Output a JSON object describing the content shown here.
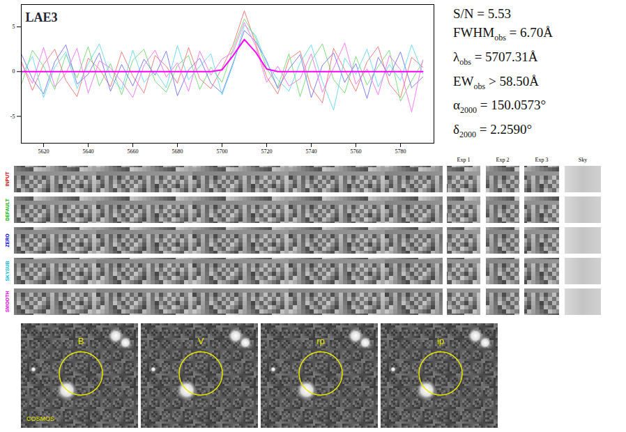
{
  "chart_data": {
    "type": "line",
    "title": "LAE3",
    "x": [
      5610,
      5615,
      5620,
      5625,
      5630,
      5635,
      5640,
      5645,
      5650,
      5655,
      5660,
      5665,
      5670,
      5675,
      5680,
      5685,
      5690,
      5695,
      5700,
      5705,
      5710,
      5715,
      5720,
      5725,
      5730,
      5735,
      5740,
      5745,
      5750,
      5755,
      5760,
      5765,
      5770,
      5775,
      5780,
      5785,
      5790
    ],
    "series": [
      {
        "color": "#f07070",
        "line_style": "solid",
        "values": [
          1.2,
          -2.1,
          0.8,
          2.5,
          -1.0,
          -2.8,
          1.5,
          0.3,
          -1.7,
          2.2,
          -0.5,
          -2.4,
          1.8,
          0.6,
          -1.3,
          2.7,
          -0.8,
          -1.9,
          0.4,
          3.0,
          6.8,
          3.2,
          -0.6,
          -2.5,
          1.4,
          2.3,
          -1.8,
          -3.5,
          2.6,
          0.2,
          -2.2,
          1.1,
          2.8,
          -1.4,
          -2.9,
          1.6,
          0.5
        ]
      },
      {
        "color": "#70d870",
        "line_style": "solid",
        "values": [
          -1.5,
          2.4,
          0.6,
          -2.0,
          1.9,
          -0.7,
          2.8,
          -1.6,
          0.9,
          -2.6,
          1.3,
          2.5,
          -1.1,
          -2.3,
          0.7,
          1.8,
          -2.0,
          0.5,
          -1.2,
          2.6,
          5.9,
          3.8,
          0.4,
          -1.7,
          2.0,
          -2.8,
          1.2,
          3.1,
          -0.9,
          -2.4,
          1.7,
          -1.5,
          0.6,
          2.4,
          -3.3,
          -1.0,
          1.1
        ]
      },
      {
        "color": "#7070f0",
        "line_style": "solid",
        "values": [
          2.0,
          -0.8,
          -2.5,
          1.1,
          3.0,
          -1.4,
          -0.3,
          2.1,
          -2.2,
          0.8,
          -1.6,
          1.4,
          -0.4,
          2.3,
          -2.7,
          0.2,
          1.5,
          -1.3,
          -2.4,
          1.0,
          4.6,
          3.4,
          1.2,
          -1.9,
          0.3,
          1.9,
          -2.9,
          0.7,
          2.1,
          -1.2,
          0.9,
          -3.0,
          1.6,
          -0.5,
          2.2,
          -1.8,
          -0.6
        ]
      },
      {
        "color": "#60d8ee",
        "line_style": "solid",
        "values": [
          -0.4,
          1.7,
          -2.9,
          0.5,
          2.2,
          -1.9,
          0.9,
          3.1,
          -0.6,
          -2.0,
          2.4,
          -1.2,
          0.1,
          -1.8,
          2.9,
          -0.9,
          0.6,
          2.0,
          -2.6,
          0.8,
          5.2,
          4.1,
          0.9,
          -0.9,
          -2.2,
          1.0,
          3.0,
          -1.1,
          -4.3,
          1.5,
          -0.3,
          2.5,
          -1.7,
          0.8,
          -1.0,
          3.0,
          -0.2
        ]
      },
      {
        "color": "#f070f0",
        "line_style": "solid",
        "values": [
          0.9,
          -1.3,
          2.7,
          -1.7,
          -0.2,
          2.6,
          -2.4,
          1.2,
          0.4,
          -1.1,
          -2.9,
          0.7,
          2.4,
          -0.6,
          1.0,
          -2.2,
          2.3,
          -0.4,
          1.4,
          2.2,
          5.5,
          2.9,
          -1.2,
          0.6,
          -1.6,
          -0.8,
          2.0,
          -2.3,
          0.4,
          3.2,
          -1.4,
          0.3,
          -2.6,
          1.8,
          0.2,
          -4.5,
          1.3
        ]
      },
      {
        "color": "#ff00ff",
        "line_style": "bold",
        "values": [
          0,
          0,
          0,
          0,
          0,
          0,
          0,
          0,
          0,
          0,
          0,
          0,
          0,
          0,
          0,
          0,
          0,
          0,
          0.2,
          1.8,
          3.6,
          2.2,
          0.3,
          0,
          0,
          0,
          0,
          0,
          0,
          0,
          0,
          0,
          0,
          0,
          0,
          0,
          0
        ]
      }
    ],
    "xlim": [
      5610,
      5795
    ],
    "xticks": [
      5620,
      5640,
      5660,
      5680,
      5700,
      5720,
      5740,
      5760,
      5780
    ],
    "ylim": [
      -8,
      7.5
    ],
    "yticks": [
      -5,
      0,
      5
    ],
    "annotations": [
      {
        "symbol": "S/N",
        "sub": "",
        "text": " = 5.53"
      },
      {
        "symbol": "FWHM",
        "sub": "obs",
        "text": " = 6.70Å"
      },
      {
        "symbol": "λ",
        "sub": "obs",
        "text": " = 5707.31Å"
      },
      {
        "symbol": "EW",
        "sub": "obs",
        "text": " > 58.50Å"
      },
      {
        "symbol": "α",
        "sub": "2000",
        "text": " = 150.0573°"
      },
      {
        "symbol": "δ",
        "sub": "2000",
        "text": " = 2.2590°"
      }
    ]
  },
  "spectra_2d": {
    "rows": [
      {
        "label": "INPUT",
        "color": "#e00000"
      },
      {
        "label": "DEFAULT",
        "color": "#00b000"
      },
      {
        "label": "ZERO",
        "color": "#0000e0"
      },
      {
        "label": "SKYSUB",
        "color": "#00b8e0"
      },
      {
        "label": "SMOOTH",
        "color": "#e000e0"
      }
    ],
    "columns": [
      "Exp 1",
      "Exp 2",
      "Exp 3",
      "Sky"
    ]
  },
  "stamps": {
    "bands": [
      "B",
      "V",
      "rp",
      "ip"
    ],
    "survey": "COSMOS"
  }
}
